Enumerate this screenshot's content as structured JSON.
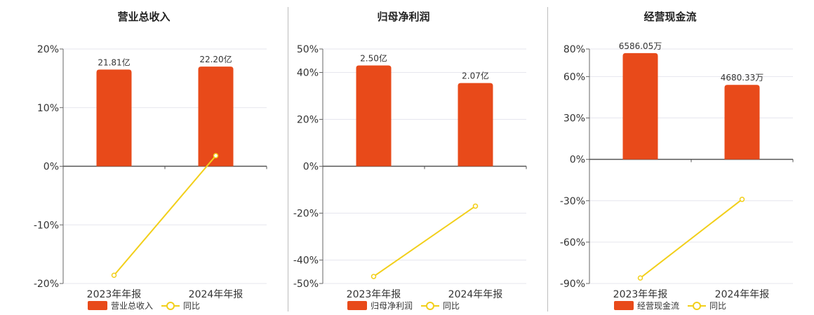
{
  "colors": {
    "bar": "#e84a1a",
    "line": "#f2cf1a",
    "axis": "#666666",
    "grid": "#e6e6ee"
  },
  "legend": {
    "line_label": "同比"
  },
  "chart_data": [
    {
      "type": "bar",
      "title": "营业总收入",
      "categories": [
        "2023年年报",
        "2024年年报"
      ],
      "bar_labels": [
        "21.81亿",
        "22.20亿"
      ],
      "series": [
        {
          "name": "营业总收入",
          "type": "bar",
          "values": [
            16.5,
            17.0
          ]
        },
        {
          "name": "同比",
          "type": "line",
          "values": [
            -18.6,
            1.8
          ]
        }
      ],
      "y_ticks": [
        20,
        10,
        0,
        -10,
        -20
      ],
      "y_tick_labels": [
        "20%",
        "10%",
        "0%",
        "-10%",
        "-20%"
      ],
      "ylim": [
        -20,
        20
      ],
      "grid": true
    },
    {
      "type": "bar",
      "title": "归母净利润",
      "categories": [
        "2023年年报",
        "2024年年报"
      ],
      "bar_labels": [
        "2.50亿",
        "2.07亿"
      ],
      "series": [
        {
          "name": "归母净利润",
          "type": "bar",
          "values": [
            43,
            35.5
          ]
        },
        {
          "name": "同比",
          "type": "line",
          "values": [
            -47,
            -17
          ]
        }
      ],
      "y_ticks": [
        50,
        40,
        20,
        0,
        -20,
        -40,
        -50
      ],
      "y_tick_labels": [
        "50%",
        "40%",
        "20%",
        "0%",
        "-20%",
        "-40%",
        "-50%"
      ],
      "ylim": [
        -50,
        50
      ],
      "grid": true
    },
    {
      "type": "bar",
      "title": "经营现金流",
      "categories": [
        "2023年年报",
        "2024年年报"
      ],
      "bar_labels": [
        "6586.05万",
        "4680.33万"
      ],
      "series": [
        {
          "name": "经营现金流",
          "type": "bar",
          "values": [
            77,
            54
          ]
        },
        {
          "name": "同比",
          "type": "line",
          "values": [
            -86,
            -29
          ]
        }
      ],
      "y_ticks": [
        80,
        60,
        30,
        0,
        -30,
        -60,
        -90
      ],
      "y_tick_labels": [
        "80%",
        "60%",
        "30%",
        "0%",
        "-30%",
        "-60%",
        "-90%"
      ],
      "ylim": [
        -90,
        80
      ],
      "grid": true
    }
  ]
}
